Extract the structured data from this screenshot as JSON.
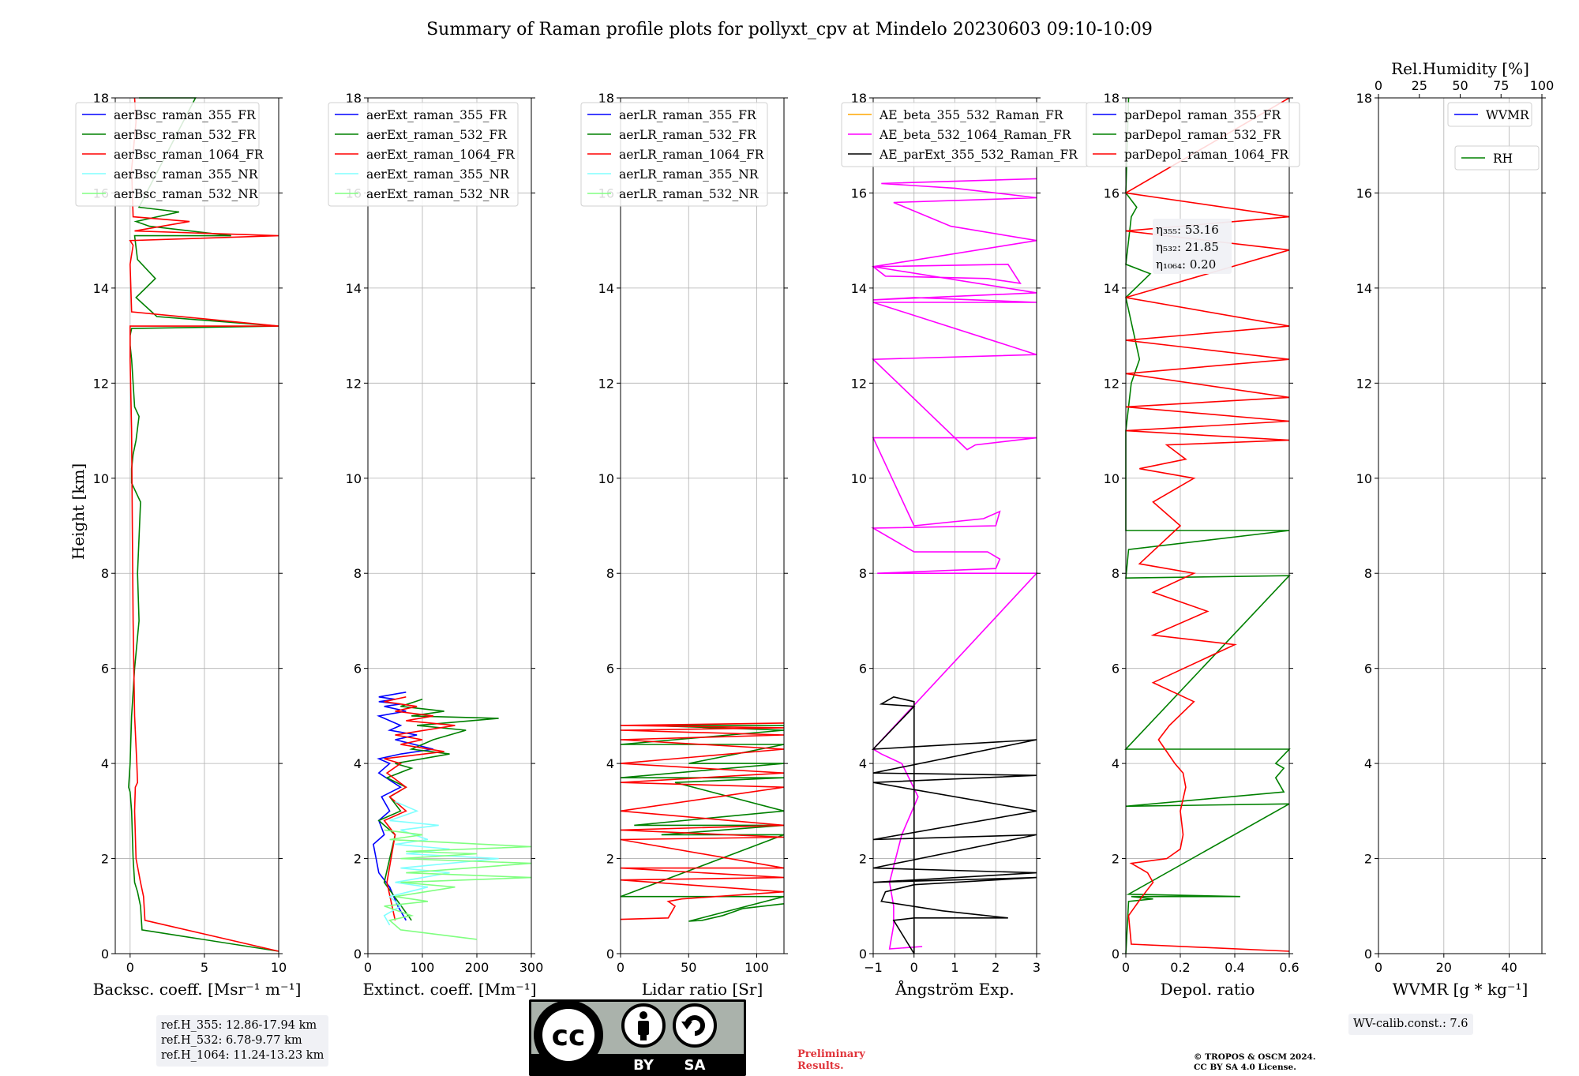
{
  "title": "Summary of Raman profile plots for pollyxt_cpv at Mindelo 20230603 09:10-10:09",
  "y_axis_label": "Height [km]",
  "y_ticks": [
    "0",
    "2",
    "4",
    "6",
    "8",
    "10",
    "12",
    "14",
    "16",
    "18"
  ],
  "ref_box": {
    "line1": "ref.H_355: 12.86-17.94 km",
    "line2": "ref.H_532: 6.78-9.77 km",
    "line3": "ref.H_1064: 11.24-13.23 km"
  },
  "wv_box": "WV-calib.const.: 7.6",
  "preliminary": {
    "line1": "Preliminary",
    "line2": "Results."
  },
  "copyright": {
    "line1": "© TROPOS & OSCM 2024.",
    "line2": "CC BY SA 4.0 License."
  },
  "license_badge": {
    "cc": "cc",
    "by": "BY",
    "sa": "SA"
  },
  "colors": {
    "blue": "#0000ff",
    "green": "#008000",
    "red": "#ff0000",
    "cyan": "#80ffff",
    "lightgreen": "#80ff80",
    "orange": "#ffa500",
    "magenta": "#ff00ff",
    "black": "#000000"
  },
  "chart_data": [
    {
      "type": "line",
      "xlabel": "Backsc. coeff. [Msr⁻¹ m⁻¹]",
      "ylabel": "Height [km]",
      "xlim": [
        -1,
        10
      ],
      "ylim": [
        0,
        18
      ],
      "xticks": [
        0,
        5,
        10
      ],
      "grid": true,
      "legend_position": "top-left",
      "series": [
        {
          "name": "aerBsc_raman_355_FR",
          "color": "blue",
          "x": [],
          "y": []
        },
        {
          "name": "aerBsc_raman_532_FR",
          "color": "green",
          "x": [
            10,
            0.8,
            0.7,
            0.5,
            0.3,
            0.2,
            0.1,
            0.0,
            -0.1,
            0.0,
            0.1,
            0.3,
            0.6,
            0.5,
            0.7,
            0.1,
            0.1,
            0.2,
            0.4,
            0.6,
            0.3,
            0.2,
            0.1,
            0.0,
            0.0,
            0.1,
            10,
            1.8,
            0.4,
            1.7,
            0.5,
            0.3,
            6.8,
            1.3,
            0.4,
            3.3,
            0.6,
            4.4,
            0.6
          ],
          "y": [
            0.05,
            0.5,
            1.0,
            1.3,
            1.5,
            2.0,
            3.0,
            3.4,
            3.5,
            4.0,
            5.0,
            6.0,
            7.0,
            8.0,
            9.5,
            9.9,
            10.2,
            10.5,
            10.8,
            11.3,
            11.5,
            12.0,
            12.5,
            12.8,
            13.0,
            13.15,
            13.2,
            13.4,
            13.8,
            14.2,
            14.6,
            15.1,
            15.1,
            15.3,
            15.4,
            15.6,
            15.7,
            18.0,
            18.0
          ]
        },
        {
          "name": "aerBsc_raman_1064_FR",
          "color": "red",
          "x": [
            10,
            1.0,
            0.9,
            0.7,
            0.4,
            0.3,
            0.35,
            0.5,
            0.45,
            0.3,
            0.2,
            0.15,
            0.1,
            0.0,
            0.0,
            10,
            0.1,
            0.0,
            0.2,
            0.0,
            10,
            0.3,
            4.0,
            0.2,
            0.1,
            0.4,
            0.3
          ],
          "y": [
            0.05,
            0.7,
            1.2,
            1.5,
            2.0,
            3.0,
            3.5,
            3.6,
            4.0,
            5.0,
            7.0,
            9.0,
            11.0,
            12.5,
            13.2,
            13.2,
            13.5,
            14.5,
            14.9,
            15.0,
            15.1,
            15.2,
            15.4,
            15.5,
            16.5,
            17.5,
            18.0
          ]
        },
        {
          "name": "aerBsc_raman_355_NR",
          "color": "cyan",
          "x": [],
          "y": []
        },
        {
          "name": "aerBsc_raman_532_NR",
          "color": "lightgreen",
          "x": [],
          "y": []
        }
      ]
    },
    {
      "type": "line",
      "xlabel": "Extinct. coeff. [Mm⁻¹]",
      "ylabel": "Height [km]",
      "xlim": [
        0,
        300
      ],
      "ylim": [
        0,
        18
      ],
      "xticks": [
        0,
        100,
        200,
        300
      ],
      "grid": true,
      "legend_position": "top-left",
      "series": [
        {
          "name": "aerExt_raman_355_FR",
          "color": "blue",
          "x": [
            70,
            55,
            40,
            20,
            15,
            10,
            30,
            20,
            40,
            25,
            60,
            20,
            40,
            20,
            60,
            120,
            50,
            90,
            40,
            60,
            20,
            70,
            30,
            60,
            20,
            50,
            20,
            70
          ],
          "y": [
            0.7,
            1.0,
            1.4,
            1.7,
            2.0,
            2.3,
            2.5,
            2.8,
            3.0,
            3.3,
            3.5,
            3.8,
            4.0,
            4.1,
            4.2,
            4.3,
            4.5,
            4.6,
            4.7,
            4.8,
            5.0,
            5.1,
            5.2,
            5.25,
            5.3,
            5.35,
            5.4,
            5.5
          ]
        },
        {
          "name": "aerExt_raman_532_FR",
          "color": "green",
          "x": [
            80,
            30,
            50,
            20,
            60,
            40,
            70,
            35,
            80,
            50,
            150,
            80,
            120,
            180,
            90,
            240,
            80,
            140,
            60,
            100
          ],
          "y": [
            0.7,
            1.5,
            2.5,
            2.8,
            3.0,
            3.3,
            3.5,
            3.7,
            3.9,
            4.0,
            4.2,
            4.3,
            4.5,
            4.7,
            4.8,
            4.95,
            5.0,
            5.1,
            5.2,
            5.35
          ]
        },
        {
          "name": "aerExt_raman_1064_FR",
          "color": "red",
          "x": [
            50,
            35,
            50,
            30,
            70,
            40,
            70,
            35,
            60,
            30,
            140,
            60,
            100,
            50,
            160,
            70,
            120,
            50,
            90,
            30,
            70
          ],
          "y": [
            0.7,
            1.5,
            2.5,
            2.8,
            3.0,
            3.3,
            3.5,
            3.8,
            4.0,
            4.1,
            4.25,
            4.4,
            4.5,
            4.6,
            4.8,
            4.9,
            5.0,
            5.1,
            5.2,
            5.3,
            5.4
          ]
        },
        {
          "name": "aerExt_raman_355_NR",
          "color": "cyan",
          "x": [
            40,
            30,
            60,
            40,
            110,
            50,
            150,
            60,
            240,
            70,
            150,
            50,
            110,
            60,
            130,
            40,
            90,
            50
          ],
          "y": [
            0.6,
            0.8,
            1.0,
            1.2,
            1.4,
            1.5,
            1.7,
            1.8,
            2.0,
            2.1,
            2.2,
            2.3,
            2.4,
            2.6,
            2.7,
            2.8,
            3.0,
            3.2
          ]
        },
        {
          "name": "aerExt_raman_532_NR",
          "color": "lightgreen",
          "x": [
            200,
            60,
            40,
            80,
            30,
            110,
            50,
            160,
            60,
            300,
            70,
            300,
            60,
            200,
            70,
            300,
            40,
            100,
            30
          ],
          "y": [
            0.3,
            0.5,
            0.7,
            0.8,
            1.0,
            1.1,
            1.2,
            1.4,
            1.5,
            1.6,
            1.7,
            1.9,
            2.0,
            2.1,
            2.15,
            2.25,
            2.4,
            2.5,
            2.6
          ]
        }
      ]
    },
    {
      "type": "line",
      "xlabel": "Lidar ratio [Sr]",
      "ylabel": "Height [km]",
      "xlim": [
        0,
        120
      ],
      "ylim": [
        0,
        18
      ],
      "xticks": [
        0,
        50,
        100
      ],
      "grid": true,
      "legend_position": "top-left",
      "series": [
        {
          "name": "aerLR_raman_355_FR",
          "color": "blue",
          "x": [],
          "y": []
        },
        {
          "name": "aerLR_raman_532_FR",
          "color": "green",
          "x": [
            120,
            90,
            75,
            60,
            50,
            120,
            0,
            120,
            30,
            120,
            10,
            120,
            40,
            120,
            0,
            120,
            50,
            120,
            0,
            120,
            20,
            120
          ],
          "y": [
            1.05,
            0.95,
            0.8,
            0.7,
            0.68,
            1.2,
            1.2,
            2.5,
            2.5,
            2.7,
            2.7,
            3.0,
            3.6,
            3.7,
            3.7,
            4.0,
            4.0,
            4.4,
            4.4,
            4.7,
            4.8,
            4.8
          ]
        },
        {
          "name": "aerLR_raman_1064_FR",
          "color": "red",
          "x": [
            0,
            35,
            40,
            35,
            45,
            120,
            0,
            120,
            0,
            120,
            0,
            120,
            0,
            120,
            0,
            120,
            0,
            120,
            0,
            120,
            0,
            120,
            0,
            120,
            0,
            120
          ],
          "y": [
            0.72,
            0.75,
            1.0,
            1.1,
            1.15,
            1.3,
            1.55,
            1.6,
            1.8,
            1.8,
            2.4,
            2.45,
            2.6,
            2.7,
            3.0,
            3.5,
            3.6,
            3.8,
            4.0,
            4.3,
            4.5,
            4.6,
            4.7,
            4.75,
            4.8,
            4.85
          ]
        },
        {
          "name": "aerLR_raman_355_NR",
          "color": "cyan",
          "x": [],
          "y": []
        },
        {
          "name": "aerLR_raman_532_NR",
          "color": "lightgreen",
          "x": [],
          "y": []
        }
      ]
    },
    {
      "type": "line",
      "xlabel": "Ångström Exp.",
      "ylabel": "Height [km]",
      "xlim": [
        -1,
        3
      ],
      "ylim": [
        0,
        18
      ],
      "xticks": [
        -1,
        0,
        1,
        2,
        3
      ],
      "grid": true,
      "legend_position": "top-left",
      "series": [
        {
          "name": "AE_beta_355_532_Raman_FR",
          "color": "orange",
          "x": [],
          "y": []
        },
        {
          "name": "AE_beta_532_1064_Raman_FR",
          "color": "magenta",
          "x": [
            0.2,
            -0.6,
            -0.5,
            -0.5,
            -0.6,
            -0.3,
            0.1,
            -0.3,
            -0.8,
            -1.0,
            3.0,
            -0.9,
            2.0,
            2.1,
            1.8,
            0.0,
            -1.0,
            2.0,
            2.1,
            1.7,
            0.0,
            -1.0,
            3.0,
            1.5,
            1.3,
            -1.0,
            3.0,
            -1.0,
            3.0,
            0.0,
            -1.0,
            3.0,
            -1.0,
            2.3,
            2.6,
            1.8,
            -0.7,
            -1.0,
            3.0,
            0.9,
            -0.5,
            3.0,
            1.0,
            -0.8,
            3.0
          ],
          "y": [
            0.15,
            0.1,
            0.6,
            1.0,
            1.5,
            2.5,
            3.3,
            4.0,
            4.2,
            4.3,
            8.0,
            8.0,
            8.1,
            8.3,
            8.45,
            8.45,
            8.95,
            9.0,
            9.3,
            9.15,
            9.0,
            10.85,
            10.85,
            10.7,
            10.6,
            12.5,
            12.6,
            13.7,
            13.7,
            13.8,
            13.75,
            13.9,
            14.45,
            14.5,
            14.1,
            14.2,
            14.25,
            14.45,
            15.0,
            15.3,
            15.8,
            15.9,
            16.1,
            16.2,
            16.3
          ]
        },
        {
          "name": "AE_parExt_355_532_Raman_FR",
          "color": "black",
          "x": [
            0.0,
            0.0,
            0.0,
            -0.5,
            -0.8,
            0.0,
            -1.0,
            3.0,
            -1.0,
            3.0,
            -1.0,
            3.0,
            -1.0,
            3.0,
            -1.0,
            3.0,
            -1.0,
            3.0,
            0.0,
            -0.7,
            -0.8,
            0.7,
            2.3,
            0.0,
            -0.5,
            0.0
          ],
          "y": [
            0.0,
            0.7,
            5.3,
            5.4,
            5.25,
            5.2,
            4.3,
            4.5,
            3.8,
            3.75,
            3.6,
            3.0,
            2.4,
            2.5,
            1.8,
            1.7,
            1.5,
            1.6,
            1.45,
            1.3,
            1.1,
            0.9,
            0.75,
            0.75,
            0.7,
            0.0
          ]
        }
      ]
    },
    {
      "type": "line",
      "xlabel": "Depol. ratio",
      "ylabel": "Height [km]",
      "xlim": [
        0.0,
        0.6
      ],
      "ylim": [
        0,
        18
      ],
      "xticks": [
        0.0,
        0.2,
        0.4,
        0.6
      ],
      "grid": true,
      "legend_position": "top-left",
      "annotation": {
        "eta355": "η₃₅₅: 53.16",
        "eta532": "η₅₃₂: 21.85",
        "eta1064": "η₁₀₆₄: 0.20"
      },
      "series": [
        {
          "name": "parDepol_raman_355_FR",
          "color": "blue",
          "x": [],
          "y": []
        },
        {
          "name": "parDepol_raman_532_FR",
          "color": "green",
          "x": [
            0.0,
            0.01,
            0.1,
            0.02,
            0.42,
            0.01,
            0.6,
            0.0,
            0.58,
            0.55,
            0.58,
            0.55,
            0.6,
            0.0,
            0.6,
            0.0,
            0.01,
            0.6,
            0.0,
            0.0,
            0.02,
            0.05,
            0.0,
            0.09,
            0.0,
            0.01,
            0.02,
            0.04,
            0.0,
            0.01
          ],
          "y": [
            0.0,
            1.1,
            1.15,
            1.2,
            1.2,
            1.25,
            3.15,
            3.1,
            3.4,
            3.7,
            3.9,
            4.0,
            4.3,
            4.3,
            7.95,
            7.9,
            8.5,
            8.9,
            8.9,
            11.0,
            12.0,
            12.5,
            13.8,
            14.3,
            14.5,
            15.0,
            15.5,
            15.7,
            16.0,
            18.0
          ]
        },
        {
          "name": "parDepol_raman_1064_FR",
          "color": "red",
          "x": [
            0.6,
            0.02,
            0.01,
            0.06,
            0.1,
            0.08,
            0.02,
            0.15,
            0.2,
            0.21,
            0.2,
            0.22,
            0.21,
            0.18,
            0.12,
            0.16,
            0.25,
            0.1,
            0.4,
            0.1,
            0.3,
            0.1,
            0.25,
            0.05,
            0.2,
            0.1,
            0.25,
            0.05,
            0.22,
            0.15,
            0.6,
            0.0,
            0.6,
            0.0,
            0.6,
            0.0,
            0.6,
            0.0,
            0.6,
            0.0,
            0.6,
            0.0,
            0.6,
            0.0,
            0.6
          ],
          "y": [
            0.05,
            0.2,
            0.8,
            1.2,
            1.5,
            1.7,
            1.9,
            2.0,
            2.2,
            2.5,
            3.0,
            3.5,
            3.8,
            4.0,
            4.5,
            4.8,
            5.3,
            5.7,
            6.5,
            6.7,
            7.2,
            7.6,
            8.0,
            8.2,
            9.0,
            9.5,
            10.0,
            10.2,
            10.4,
            10.7,
            10.8,
            11.0,
            11.2,
            11.5,
            11.7,
            12.2,
            12.5,
            12.9,
            13.2,
            13.8,
            14.8,
            15.2,
            15.5,
            16.0,
            18.0
          ]
        }
      ]
    },
    {
      "type": "line",
      "xlabel": "WVMR [g * kg⁻¹]",
      "ylabel": "Height [km]",
      "xlim": [
        0,
        50
      ],
      "ylim": [
        0,
        18
      ],
      "xticks": [
        0,
        20,
        40
      ],
      "top_xlabel": "Rel.Humidity [%]",
      "top_xticks": [
        0,
        25,
        50,
        75,
        100
      ],
      "grid": true,
      "legend_position": "top-right",
      "series": [
        {
          "name": "WVMR",
          "color": "blue",
          "x": [],
          "y": []
        },
        {
          "name": "RH",
          "color": "green",
          "x": [],
          "y": []
        }
      ]
    }
  ]
}
